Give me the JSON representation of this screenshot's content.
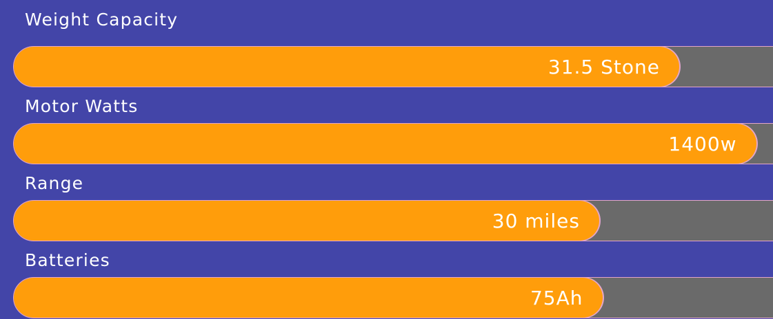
{
  "specs": [
    {
      "label": "Weight Capacity",
      "value": "31.5 Stone",
      "fill_percent": 84.8
    },
    {
      "label": "Motor Watts",
      "value": "1400w",
      "fill_percent": 94.6
    },
    {
      "label": "Range",
      "value": "30 miles",
      "fill_percent": 74.6
    },
    {
      "label": "Batteries",
      "value": "75Ah",
      "fill_percent": 75.0
    }
  ],
  "colors": {
    "background": "#4345a8",
    "bar_fill": "#ff9d0b",
    "bar_track": "#6a6a6a",
    "bar_outline": "#e4a6c9",
    "text": "#ffffff"
  }
}
